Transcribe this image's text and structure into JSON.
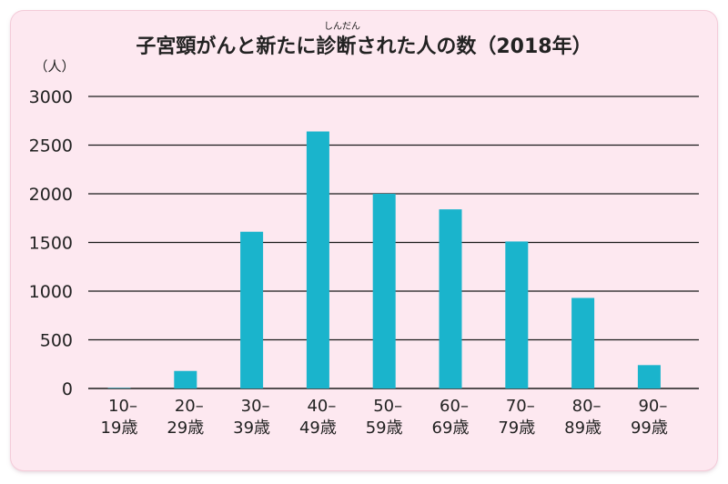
{
  "chart_data": {
    "type": "bar",
    "title": "子宮頸がんと新たに診断された人の数（2018年）",
    "title_ruby": "しんだん",
    "ylabel": "（人）",
    "xlabel": "",
    "ylim": [
      0,
      3000
    ],
    "yticks": [
      "0",
      "500",
      "1000",
      "1500",
      "2000",
      "2500",
      "3000"
    ],
    "grid": true,
    "bar_color": "#1ab4cc",
    "categories": [
      {
        "line1": "10–",
        "line2": "19歳"
      },
      {
        "line1": "20–",
        "line2": "29歳"
      },
      {
        "line1": "30–",
        "line2": "39歳"
      },
      {
        "line1": "40–",
        "line2": "49歳"
      },
      {
        "line1": "50–",
        "line2": "59歳"
      },
      {
        "line1": "60–",
        "line2": "69歳"
      },
      {
        "line1": "70–",
        "line2": "79歳"
      },
      {
        "line1": "80–",
        "line2": "89歳"
      },
      {
        "line1": "90–",
        "line2": "99歳"
      }
    ],
    "values": [
      5,
      180,
      1610,
      2640,
      2000,
      1840,
      1510,
      930,
      240
    ]
  }
}
